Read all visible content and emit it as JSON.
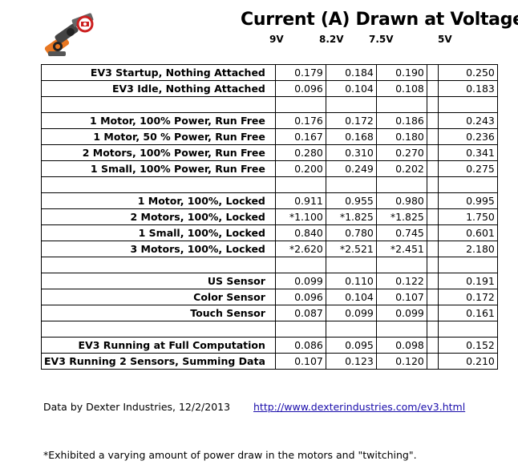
{
  "title": "Current (A) Drawn at Voltage",
  "voltages": [
    "9V",
    "8.2V",
    "7.5V",
    "5V"
  ],
  "groups": [
    {
      "rows": [
        {
          "label": "EV3 Startup, Nothing Attached",
          "values": [
            "0.179",
            "0.184",
            "0.190",
            "0.250"
          ]
        },
        {
          "label": "EV3 Idle, Nothing Attached",
          "values": [
            "0.096",
            "0.104",
            "0.108",
            "0.183"
          ]
        }
      ]
    },
    {
      "rows": [
        {
          "label": "1 Motor, 100% Power, Run Free",
          "values": [
            "0.176",
            "0.172",
            "0.186",
            "0.243"
          ]
        },
        {
          "label": "1 Motor, 50 % Power, Run Free",
          "values": [
            "0.167",
            "0.168",
            "0.180",
            "0.236"
          ]
        },
        {
          "label": "2 Motors, 100% Power, Run Free",
          "values": [
            "0.280",
            "0.310",
            "0.270",
            "0.341"
          ]
        },
        {
          "label": "1 Small, 100% Power, Run Free",
          "values": [
            "0.200",
            "0.249",
            "0.202",
            "0.275"
          ]
        }
      ]
    },
    {
      "rows": [
        {
          "label": "1 Motor, 100%, Locked",
          "values": [
            "0.911",
            "0.955",
            "0.980",
            "0.995"
          ]
        },
        {
          "label": "2 Motors, 100%, Locked",
          "values": [
            "*1.100",
            "*1.825",
            "*1.825",
            "1.750"
          ]
        },
        {
          "label": "1 Small, 100%, Locked",
          "values": [
            "0.840",
            "0.780",
            "0.745",
            "0.601"
          ]
        },
        {
          "label": "3 Motors, 100%, Locked",
          "values": [
            "*2.620",
            "*2.521",
            "*2.451",
            "2.180"
          ]
        }
      ]
    },
    {
      "rows": [
        {
          "label": "US Sensor",
          "values": [
            "0.099",
            "0.110",
            "0.122",
            "0.191"
          ]
        },
        {
          "label": "Color Sensor",
          "values": [
            "0.096",
            "0.104",
            "0.107",
            "0.172"
          ]
        },
        {
          "label": "Touch Sensor",
          "values": [
            "0.087",
            "0.099",
            "0.099",
            "0.161"
          ]
        }
      ]
    },
    {
      "rows": [
        {
          "label": "EV3 Running at Full Computation",
          "values": [
            "0.086",
            "0.095",
            "0.098",
            "0.152"
          ]
        },
        {
          "label": "EV3 Running 2 Sensors, Summing Data",
          "values": [
            "0.107",
            "0.123",
            "0.120",
            "0.210"
          ]
        }
      ]
    }
  ],
  "credit": "Data by Dexter Industries, 12/2/2013",
  "link": "http://www.dexterindustries.com/ev3.html",
  "footnote": "*Exhibited a varying amount of power draw in the motors and \"twitching\".",
  "icons": {
    "logo": "dexter-industries-robot-arm-logo"
  },
  "colors": {
    "link": "#1a0dab",
    "logo_orange": "#e87722",
    "logo_red": "#cc1f1f"
  }
}
